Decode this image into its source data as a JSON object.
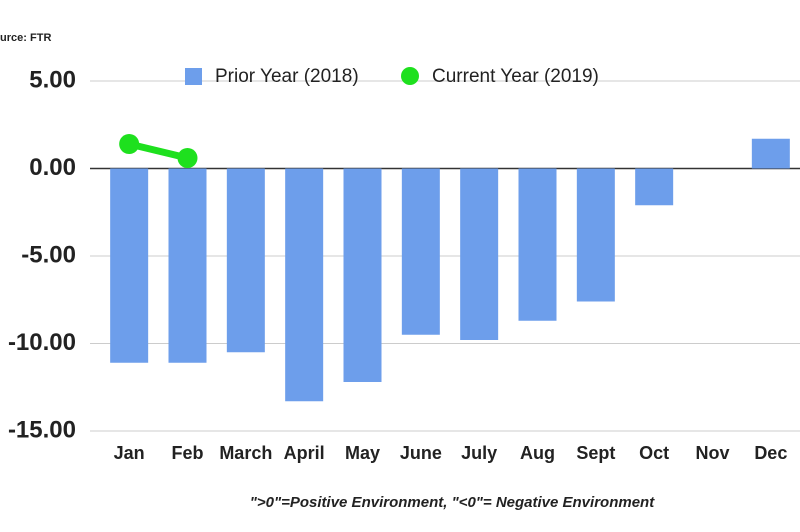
{
  "chart_data": {
    "type": "bar",
    "source": "Source: FTR",
    "note": "\">0\"=Positive Environment, \"<0\"= Negative Environment",
    "categories": [
      "Jan",
      "Feb",
      "March",
      "April",
      "May",
      "June",
      "July",
      "Aug",
      "Sept",
      "Oct",
      "Nov",
      "Dec"
    ],
    "series": [
      {
        "name": "Prior Year (2018)",
        "type": "bar",
        "color": "#6d9eeb",
        "values": [
          -11.1,
          -11.1,
          -10.5,
          -13.3,
          -12.2,
          -9.5,
          -9.8,
          -8.7,
          -7.6,
          -2.1,
          0,
          1.7
        ]
      },
      {
        "name": "Current Year (2019)",
        "type": "line",
        "color": "#1ee01e",
        "values": [
          1.4,
          0.6,
          null,
          null,
          null,
          null,
          null,
          null,
          null,
          null,
          null,
          null
        ]
      }
    ],
    "ylim": [
      -15,
      5
    ],
    "yticks": [
      {
        "value": 5,
        "label": "5.00"
      },
      {
        "value": 0,
        "label": "0.00"
      },
      {
        "value": -5,
        "label": "-5.00"
      },
      {
        "value": -10,
        "label": "-10.00"
      },
      {
        "value": -15,
        "label": "-15.00"
      }
    ],
    "grid": true
  }
}
